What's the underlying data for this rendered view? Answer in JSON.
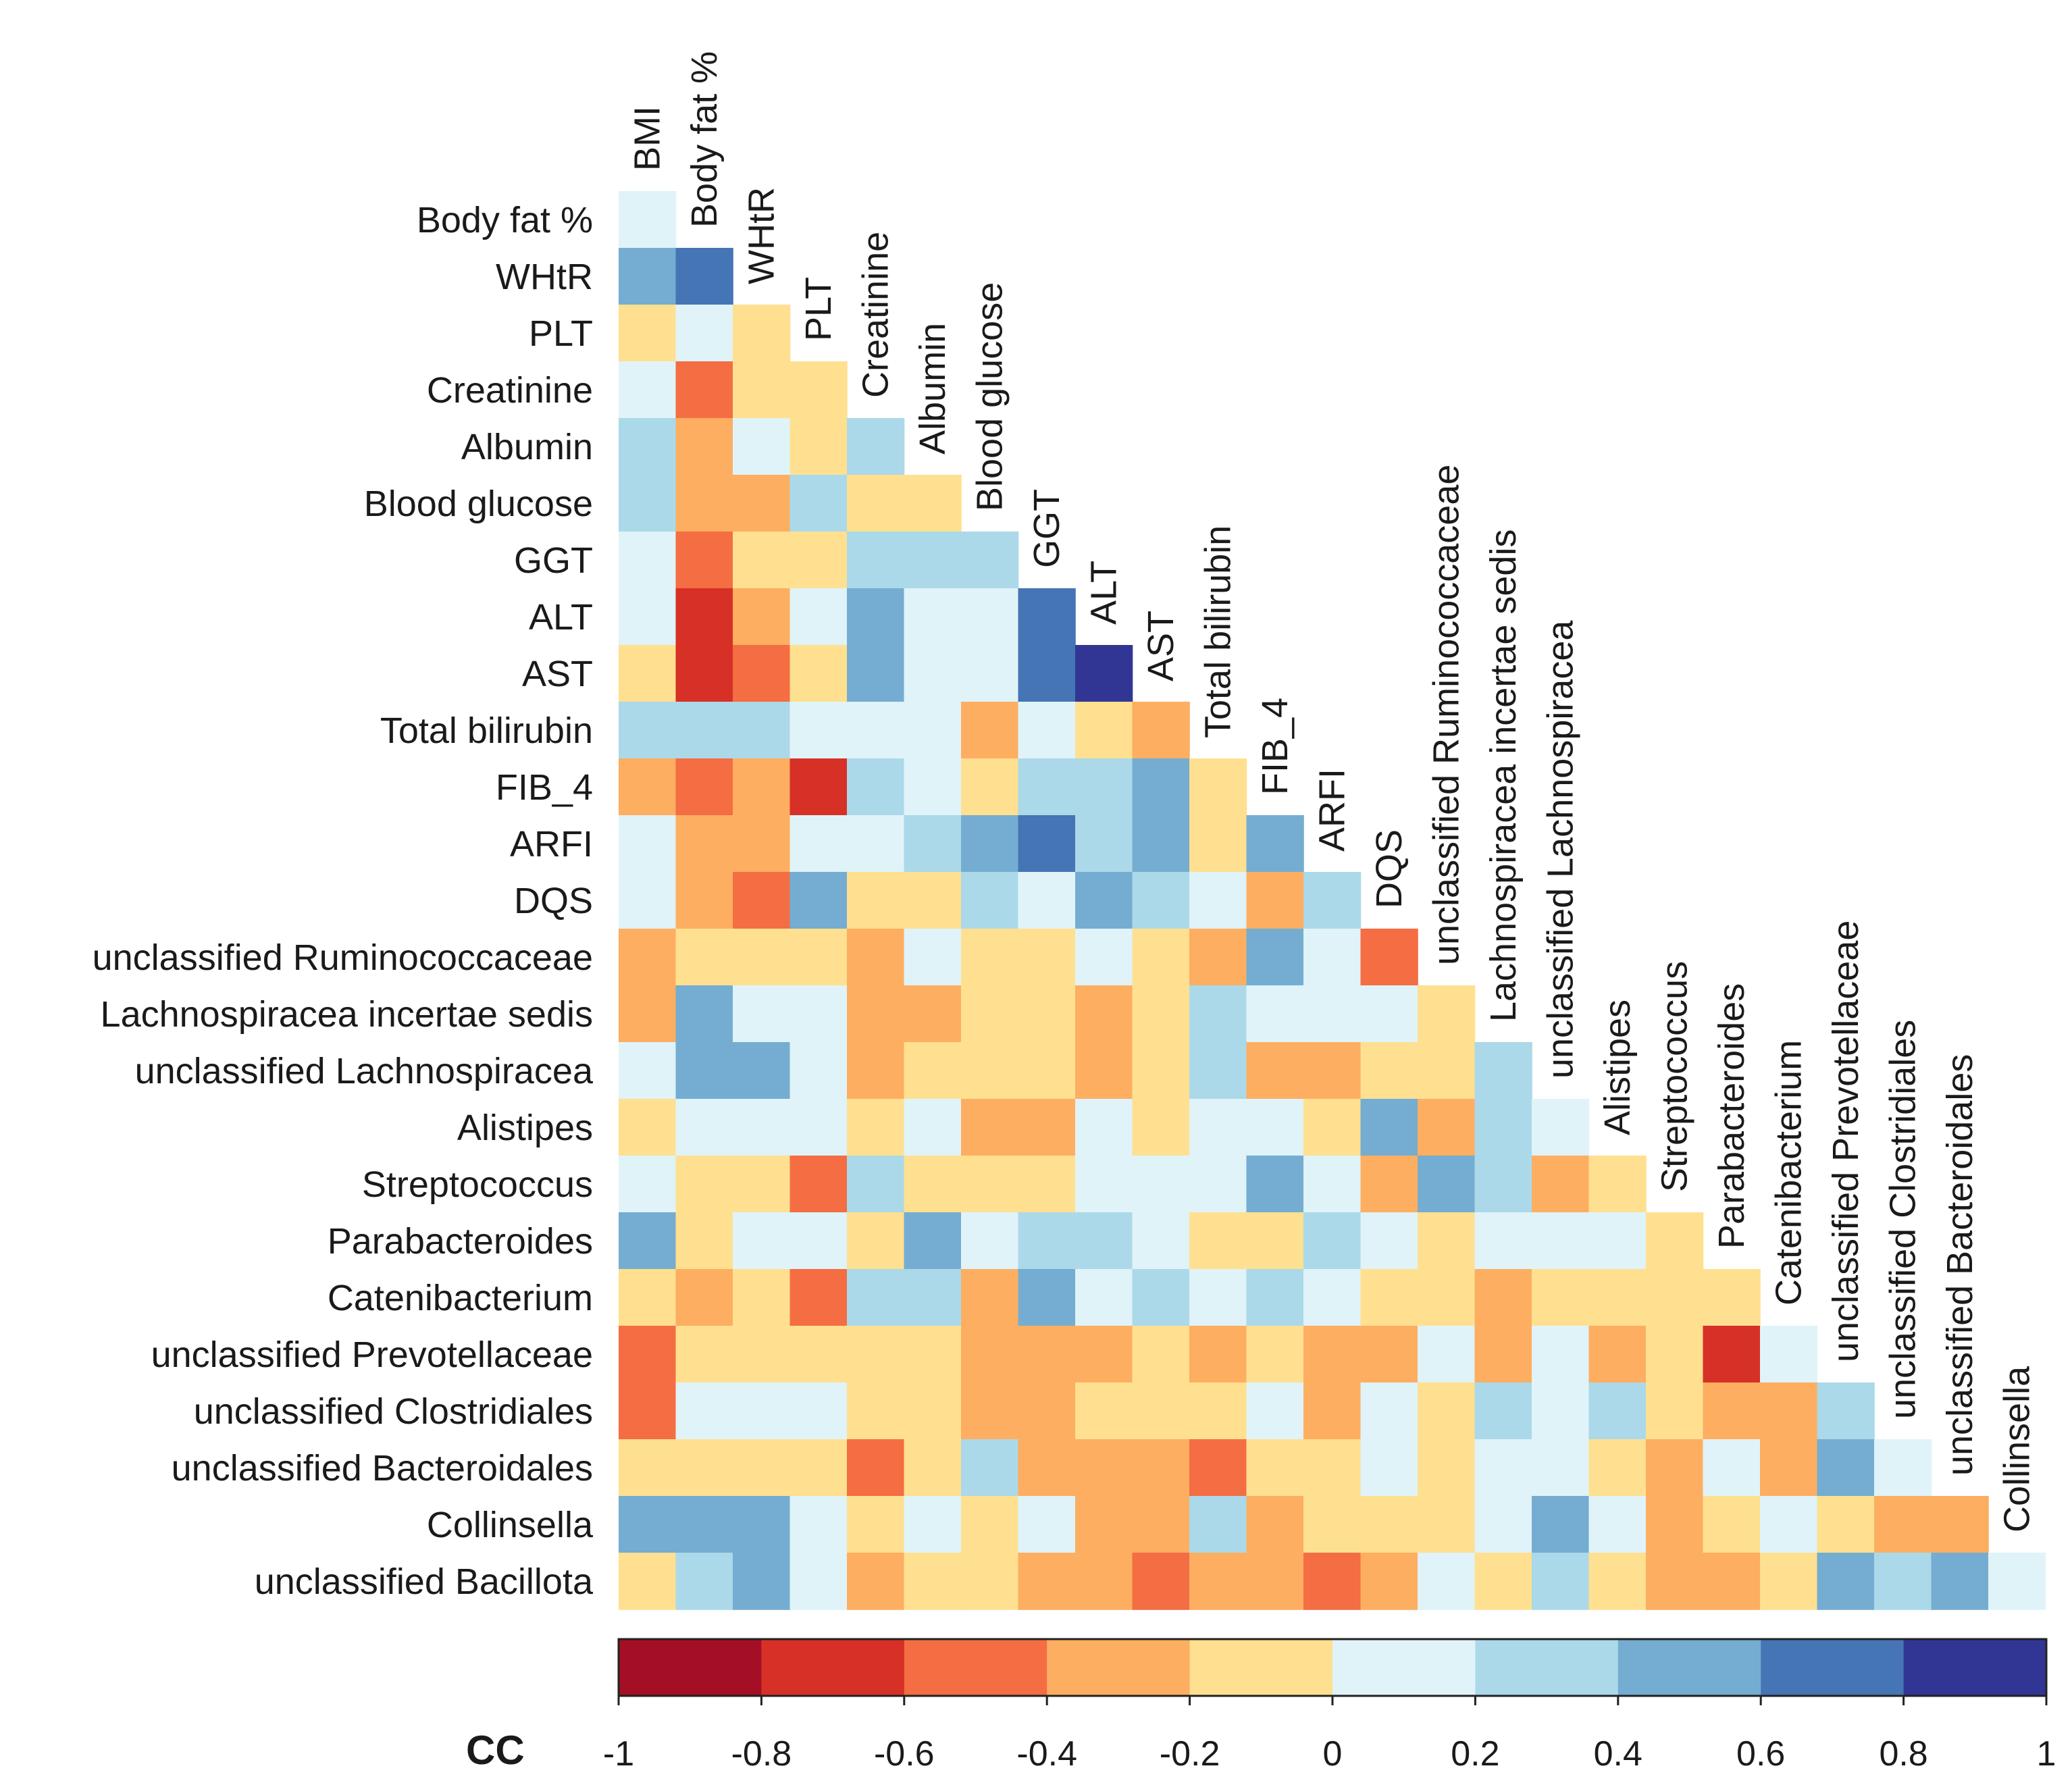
{
  "chart_data": {
    "type": "heatmap",
    "title": "",
    "legend_label": "CC",
    "variables": [
      "BMI",
      "Body fat %",
      "WHtR",
      "PLT",
      "Creatinine",
      "Albumin",
      "Blood glucose",
      "GGT",
      "ALT",
      "AST",
      "Total bilirubin",
      "FIB_4",
      "ARFI",
      "DQS",
      "unclassified Ruminococcaceae",
      "Lachnospiracea incertae sedis",
      "unclassified Lachnospiracea",
      "Alistipes",
      "Streptococcus",
      "Parabacteroides",
      "Catenibacterium",
      "unclassified Prevotellaceae",
      "unclassified Clostridiales",
      "unclassified Bacteroidales",
      "Collinsella"
    ],
    "row_labels": [
      "Body fat %",
      "WHtR",
      "PLT",
      "Creatinine",
      "Albumin",
      "Blood glucose",
      "GGT",
      "ALT",
      "AST",
      "Total bilirubin",
      "FIB_4",
      "ARFI",
      "DQS",
      "unclassified Ruminococcaceae",
      "Lachnospiracea incertae sedis",
      "unclassified Lachnospiracea",
      "Alistipes",
      "Streptococcus",
      "Parabacteroides",
      "Catenibacterium",
      "unclassified Prevotellaceae",
      "unclassified Clostridiales",
      "unclassified Bacteroidales",
      "Collinsella",
      "unclassified  Bacillota"
    ],
    "values": [
      [
        0.1
      ],
      [
        0.5,
        0.7
      ],
      [
        -0.1,
        0.1,
        -0.1
      ],
      [
        0.1,
        -0.5,
        -0.1,
        -0.1
      ],
      [
        0.3,
        -0.3,
        0.1,
        -0.1,
        0.3
      ],
      [
        0.3,
        -0.3,
        -0.3,
        0.3,
        -0.1,
        -0.1
      ],
      [
        0.1,
        -0.5,
        -0.1,
        -0.1,
        0.3,
        0.3,
        0.3
      ],
      [
        0.1,
        -0.7,
        -0.3,
        0.1,
        0.5,
        0.1,
        0.1,
        0.7
      ],
      [
        -0.1,
        -0.7,
        -0.5,
        -0.1,
        0.5,
        0.1,
        0.1,
        0.7,
        0.9
      ],
      [
        0.3,
        0.3,
        0.3,
        0.1,
        0.1,
        0.1,
        -0.3,
        0.1,
        -0.1,
        -0.3
      ],
      [
        -0.3,
        -0.5,
        -0.3,
        -0.7,
        0.3,
        0.1,
        -0.1,
        0.3,
        0.3,
        0.5,
        -0.1
      ],
      [
        0.1,
        -0.3,
        -0.3,
        0.1,
        0.1,
        0.3,
        0.5,
        0.7,
        0.3,
        0.5,
        -0.1,
        0.5
      ],
      [
        0.1,
        -0.3,
        -0.5,
        0.5,
        -0.1,
        -0.1,
        0.3,
        0.1,
        0.5,
        0.3,
        0.1,
        -0.3,
        0.3
      ],
      [
        -0.3,
        -0.1,
        -0.1,
        -0.1,
        -0.3,
        0.1,
        -0.1,
        -0.1,
        0.1,
        -0.1,
        -0.3,
        0.5,
        0.1,
        -0.5
      ],
      [
        -0.3,
        0.5,
        0.1,
        0.1,
        -0.3,
        -0.3,
        -0.1,
        -0.1,
        -0.3,
        -0.1,
        0.3,
        0.1,
        0.1,
        0.1,
        -0.1
      ],
      [
        0.1,
        0.5,
        0.5,
        0.1,
        -0.3,
        -0.1,
        -0.1,
        -0.1,
        -0.3,
        -0.1,
        0.3,
        -0.3,
        -0.3,
        -0.1,
        -0.1,
        0.3
      ],
      [
        -0.1,
        0.1,
        0.1,
        0.1,
        -0.1,
        0.1,
        -0.3,
        -0.3,
        0.1,
        -0.1,
        0.1,
        0.1,
        -0.1,
        0.5,
        -0.3,
        0.3,
        0.1
      ],
      [
        0.1,
        -0.1,
        -0.1,
        -0.5,
        0.3,
        -0.1,
        -0.1,
        -0.1,
        0.1,
        0.1,
        0.1,
        0.5,
        0.1,
        -0.3,
        0.5,
        0.3,
        -0.3,
        -0.1
      ],
      [
        0.5,
        -0.1,
        0.1,
        0.1,
        -0.1,
        0.5,
        0.1,
        0.3,
        0.3,
        0.1,
        -0.1,
        -0.1,
        0.3,
        0.1,
        -0.1,
        0.1,
        0.1,
        0.1,
        -0.1
      ],
      [
        -0.1,
        -0.3,
        -0.1,
        -0.5,
        0.3,
        0.3,
        -0.3,
        0.5,
        0.1,
        0.3,
        0.1,
        0.3,
        0.1,
        -0.1,
        -0.1,
        -0.3,
        -0.1,
        -0.1,
        -0.1,
        -0.1
      ],
      [
        -0.5,
        -0.1,
        -0.1,
        -0.1,
        -0.1,
        -0.1,
        -0.3,
        -0.3,
        -0.3,
        -0.1,
        -0.3,
        -0.1,
        -0.3,
        -0.3,
        0.1,
        -0.3,
        0.1,
        -0.3,
        -0.1,
        -0.7,
        0.1
      ],
      [
        -0.5,
        0.1,
        0.1,
        0.1,
        -0.1,
        -0.1,
        -0.3,
        -0.3,
        -0.1,
        -0.1,
        -0.1,
        0.1,
        -0.3,
        0.1,
        -0.1,
        0.3,
        0.1,
        0.3,
        -0.1,
        -0.3,
        -0.3,
        0.3
      ],
      [
        -0.1,
        -0.1,
        -0.1,
        -0.1,
        -0.5,
        -0.1,
        0.3,
        -0.3,
        -0.3,
        -0.3,
        -0.5,
        -0.1,
        -0.1,
        0.1,
        -0.1,
        0.1,
        0.1,
        -0.1,
        -0.3,
        0.1,
        -0.3,
        0.5,
        0.1
      ],
      [
        0.5,
        0.5,
        0.5,
        0.1,
        -0.1,
        0.1,
        -0.1,
        0.1,
        -0.3,
        -0.3,
        0.3,
        -0.3,
        -0.1,
        -0.1,
        -0.1,
        0.1,
        0.5,
        0.1,
        -0.3,
        -0.1,
        0.1,
        -0.1,
        -0.3,
        -0.3
      ],
      [
        -0.1,
        0.3,
        0.5,
        0.1,
        -0.3,
        -0.1,
        -0.1,
        -0.3,
        -0.3,
        -0.5,
        -0.3,
        -0.3,
        -0.5,
        -0.3,
        0.1,
        -0.1,
        0.3,
        -0.1,
        -0.3,
        -0.3,
        -0.1,
        0.5,
        0.3,
        0.5,
        0.1
      ]
    ],
    "color_scale": {
      "range": [
        -1,
        1
      ],
      "ticks": [
        "-1",
        "-0.8",
        "-0.6",
        "-0.4",
        "-0.2",
        "0",
        "0.2",
        "0.4",
        "0.6",
        "0.8",
        "1"
      ],
      "bins": [
        {
          "from": -1.0,
          "to": -0.8,
          "color": "#A50F26"
        },
        {
          "from": -0.8,
          "to": -0.6,
          "color": "#D73027"
        },
        {
          "from": -0.6,
          "to": -0.4,
          "color": "#F46D43"
        },
        {
          "from": -0.4,
          "to": -0.2,
          "color": "#FDAE61"
        },
        {
          "from": -0.2,
          "to": 0.0,
          "color": "#FEE090"
        },
        {
          "from": 0.0,
          "to": 0.2,
          "color": "#E0F3F8"
        },
        {
          "from": 0.2,
          "to": 0.4,
          "color": "#ABD9E9"
        },
        {
          "from": 0.4,
          "to": 0.6,
          "color": "#74ADD1"
        },
        {
          "from": 0.6,
          "to": 0.8,
          "color": "#4575B4"
        },
        {
          "from": 0.8,
          "to": 1.0,
          "color": "#313695"
        }
      ]
    }
  }
}
